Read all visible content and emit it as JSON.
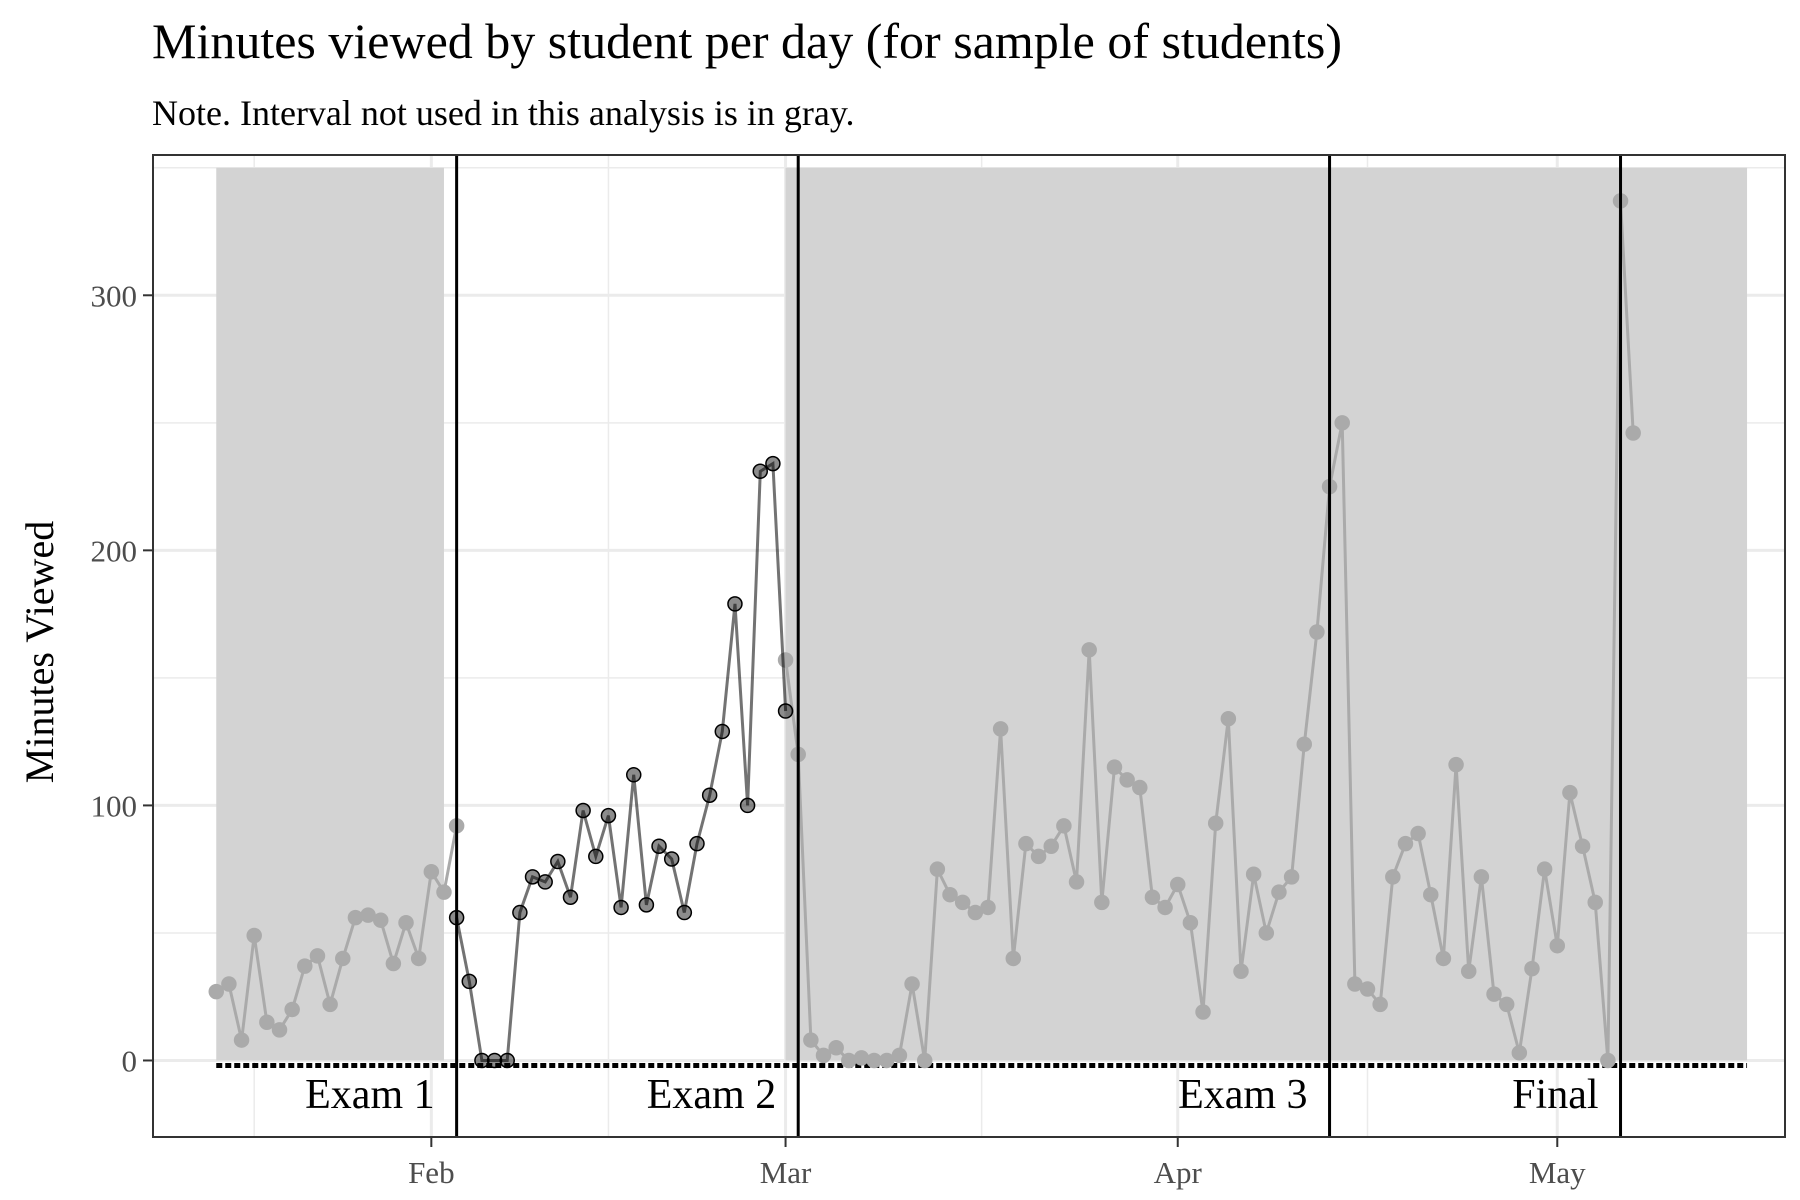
{
  "chart_data": {
    "type": "line",
    "title": "Minutes viewed by student per day (for sample of students)",
    "subtitle": "Note. Interval not used in this analysis is in gray.",
    "xlabel": "",
    "ylabel": "Minutes Viewed",
    "x_scale": "date",
    "xlim": [
      "2021-01-10",
      "2021-05-19"
    ],
    "ylim": [
      -30,
      355
    ],
    "x_ticks": [
      {
        "date": "2021-02-01",
        "label": "Feb"
      },
      {
        "date": "2021-03-01",
        "label": "Mar"
      },
      {
        "date": "2021-04-01",
        "label": "Apr"
      },
      {
        "date": "2021-05-01",
        "label": "May"
      }
    ],
    "y_ticks": [
      0,
      100,
      200,
      300
    ],
    "grid": true,
    "colors": {
      "gray_band": "#d3d3d3",
      "gray_series": "#aaaaaa",
      "analysis_series": "#000000",
      "exam_line": "#000000",
      "grid": "#ebebeb"
    },
    "gray_intervals": [
      {
        "start": "2021-01-15",
        "end": "2021-02-02",
        "top": 350
      },
      {
        "start": "2021-03-01",
        "end": "2021-05-16",
        "top": 350
      }
    ],
    "exams": [
      {
        "label": "Exam 1",
        "date": "2021-02-03"
      },
      {
        "label": "Exam 2",
        "date": "2021-03-02"
      },
      {
        "label": "Exam 3",
        "date": "2021-04-13"
      },
      {
        "label": "Final",
        "date": "2021-05-06"
      }
    ],
    "series": [
      {
        "group": "excluded (gray)",
        "points": [
          [
            "2021-01-15",
            27
          ],
          [
            "2021-01-16",
            30
          ],
          [
            "2021-01-17",
            8
          ],
          [
            "2021-01-18",
            49
          ],
          [
            "2021-01-19",
            15
          ],
          [
            "2021-01-20",
            12
          ],
          [
            "2021-01-21",
            20
          ],
          [
            "2021-01-22",
            37
          ],
          [
            "2021-01-23",
            41
          ],
          [
            "2021-01-24",
            22
          ],
          [
            "2021-01-25",
            40
          ],
          [
            "2021-01-26",
            56
          ],
          [
            "2021-01-27",
            57
          ],
          [
            "2021-01-28",
            55
          ],
          [
            "2021-01-29",
            38
          ],
          [
            "2021-01-30",
            54
          ],
          [
            "2021-01-31",
            40
          ],
          [
            "2021-02-01",
            74
          ],
          [
            "2021-02-02",
            66
          ],
          [
            "2021-02-03",
            92
          ],
          [
            "2021-03-01",
            157
          ],
          [
            "2021-03-02",
            120
          ],
          [
            "2021-03-03",
            8
          ],
          [
            "2021-03-04",
            2
          ],
          [
            "2021-03-05",
            5
          ],
          [
            "2021-03-06",
            0
          ],
          [
            "2021-03-07",
            1
          ],
          [
            "2021-03-08",
            0
          ],
          [
            "2021-03-09",
            0
          ],
          [
            "2021-03-10",
            2
          ],
          [
            "2021-03-11",
            30
          ],
          [
            "2021-03-12",
            0
          ],
          [
            "2021-03-13",
            75
          ],
          [
            "2021-03-14",
            65
          ],
          [
            "2021-03-15",
            62
          ],
          [
            "2021-03-16",
            58
          ],
          [
            "2021-03-17",
            60
          ],
          [
            "2021-03-18",
            130
          ],
          [
            "2021-03-19",
            40
          ],
          [
            "2021-03-20",
            85
          ],
          [
            "2021-03-21",
            80
          ],
          [
            "2021-03-22",
            84
          ],
          [
            "2021-03-23",
            92
          ],
          [
            "2021-03-24",
            70
          ],
          [
            "2021-03-25",
            161
          ],
          [
            "2021-03-26",
            62
          ],
          [
            "2021-03-27",
            115
          ],
          [
            "2021-03-28",
            110
          ],
          [
            "2021-03-29",
            107
          ],
          [
            "2021-03-30",
            64
          ],
          [
            "2021-03-31",
            60
          ],
          [
            "2021-04-01",
            69
          ],
          [
            "2021-04-02",
            54
          ],
          [
            "2021-04-03",
            19
          ],
          [
            "2021-04-04",
            93
          ],
          [
            "2021-04-05",
            134
          ],
          [
            "2021-04-06",
            35
          ],
          [
            "2021-04-07",
            73
          ],
          [
            "2021-04-08",
            50
          ],
          [
            "2021-04-09",
            66
          ],
          [
            "2021-04-10",
            72
          ],
          [
            "2021-04-11",
            124
          ],
          [
            "2021-04-12",
            168
          ],
          [
            "2021-04-13",
            225
          ],
          [
            "2021-04-14",
            250
          ],
          [
            "2021-04-15",
            30
          ],
          [
            "2021-04-16",
            28
          ],
          [
            "2021-04-17",
            22
          ],
          [
            "2021-04-18",
            72
          ],
          [
            "2021-04-19",
            85
          ],
          [
            "2021-04-20",
            89
          ],
          [
            "2021-04-21",
            65
          ],
          [
            "2021-04-22",
            40
          ],
          [
            "2021-04-23",
            116
          ],
          [
            "2021-04-24",
            35
          ],
          [
            "2021-04-25",
            72
          ],
          [
            "2021-04-26",
            26
          ],
          [
            "2021-04-27",
            22
          ],
          [
            "2021-04-28",
            3
          ],
          [
            "2021-04-29",
            36
          ],
          [
            "2021-04-30",
            75
          ],
          [
            "2021-05-01",
            45
          ],
          [
            "2021-05-02",
            105
          ],
          [
            "2021-05-03",
            84
          ],
          [
            "2021-05-04",
            62
          ],
          [
            "2021-05-05",
            0
          ],
          [
            "2021-05-06",
            337
          ],
          [
            "2021-05-07",
            246
          ]
        ]
      },
      {
        "group": "analysis interval (black)",
        "points": [
          [
            "2021-02-03",
            56
          ],
          [
            "2021-02-04",
            31
          ],
          [
            "2021-02-05",
            0
          ],
          [
            "2021-02-06",
            0
          ],
          [
            "2021-02-07",
            0
          ],
          [
            "2021-02-08",
            58
          ],
          [
            "2021-02-09",
            72
          ],
          [
            "2021-02-10",
            70
          ],
          [
            "2021-02-11",
            78
          ],
          [
            "2021-02-12",
            64
          ],
          [
            "2021-02-13",
            98
          ],
          [
            "2021-02-14",
            80
          ],
          [
            "2021-02-15",
            96
          ],
          [
            "2021-02-16",
            60
          ],
          [
            "2021-02-17",
            112
          ],
          [
            "2021-02-18",
            61
          ],
          [
            "2021-02-19",
            84
          ],
          [
            "2021-02-20",
            79
          ],
          [
            "2021-02-21",
            58
          ],
          [
            "2021-02-22",
            85
          ],
          [
            "2021-02-23",
            104
          ],
          [
            "2021-02-24",
            129
          ],
          [
            "2021-02-25",
            179
          ],
          [
            "2021-02-26",
            100
          ],
          [
            "2021-02-27",
            231
          ],
          [
            "2021-02-28",
            234
          ],
          [
            "2021-03-01",
            137
          ]
        ]
      }
    ]
  }
}
